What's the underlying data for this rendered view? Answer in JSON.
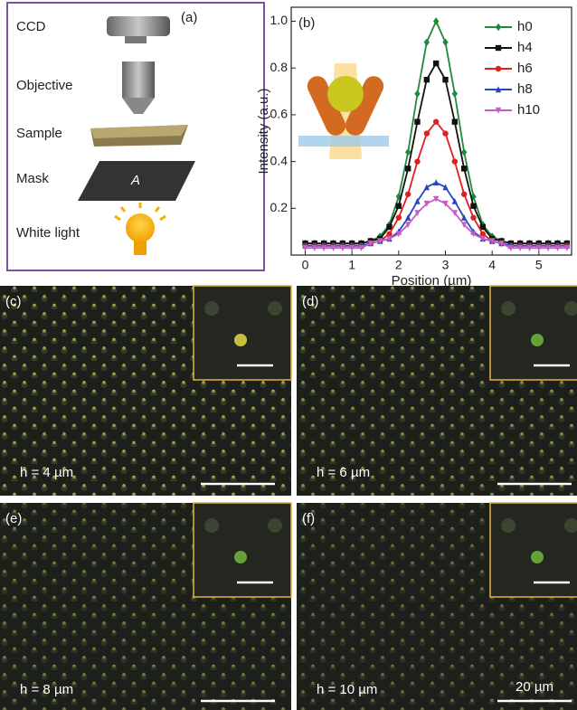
{
  "panel_a": {
    "label": "(a)",
    "components": [
      "CCD",
      "Objective",
      "Sample",
      "Mask",
      "White light"
    ],
    "mask_letter": "A"
  },
  "chart_data": {
    "type": "line",
    "panel_label": "(b)",
    "x_label": "Position (µm)",
    "y_label": "Intensity (a.u.)",
    "x": [
      0,
      0.2,
      0.4,
      0.6,
      0.8,
      1.0,
      1.2,
      1.4,
      1.6,
      1.8,
      2.0,
      2.2,
      2.4,
      2.6,
      2.8,
      3.0,
      3.2,
      3.4,
      3.6,
      3.8,
      4.0,
      4.2,
      4.4,
      4.6,
      4.8,
      5.0,
      5.2,
      5.4,
      5.6
    ],
    "series": [
      {
        "name": "h0",
        "color": "#1f8a3c",
        "marker": "diamond",
        "values": [
          0.05,
          0.05,
          0.05,
          0.05,
          0.05,
          0.05,
          0.05,
          0.06,
          0.08,
          0.13,
          0.25,
          0.44,
          0.69,
          0.91,
          1.0,
          0.91,
          0.69,
          0.44,
          0.25,
          0.13,
          0.08,
          0.06,
          0.05,
          0.05,
          0.05,
          0.05,
          0.05,
          0.05,
          0.05
        ]
      },
      {
        "name": "h4",
        "color": "#111111",
        "marker": "square",
        "values": [
          0.05,
          0.05,
          0.05,
          0.05,
          0.05,
          0.05,
          0.05,
          0.06,
          0.07,
          0.12,
          0.21,
          0.37,
          0.57,
          0.75,
          0.82,
          0.75,
          0.57,
          0.37,
          0.21,
          0.12,
          0.07,
          0.06,
          0.05,
          0.05,
          0.05,
          0.05,
          0.05,
          0.05,
          0.05
        ]
      },
      {
        "name": "h6",
        "color": "#e02020",
        "marker": "circle",
        "values": [
          0.04,
          0.04,
          0.04,
          0.04,
          0.04,
          0.04,
          0.04,
          0.05,
          0.06,
          0.09,
          0.16,
          0.26,
          0.4,
          0.52,
          0.57,
          0.52,
          0.4,
          0.26,
          0.16,
          0.09,
          0.06,
          0.05,
          0.04,
          0.04,
          0.04,
          0.04,
          0.04,
          0.04,
          0.04
        ]
      },
      {
        "name": "h8",
        "color": "#2a45c0",
        "marker": "triangle-up",
        "values": [
          0.04,
          0.04,
          0.04,
          0.04,
          0.04,
          0.04,
          0.04,
          0.05,
          0.06,
          0.07,
          0.1,
          0.16,
          0.23,
          0.29,
          0.31,
          0.29,
          0.23,
          0.16,
          0.1,
          0.07,
          0.06,
          0.05,
          0.04,
          0.04,
          0.04,
          0.04,
          0.04,
          0.04,
          0.04
        ]
      },
      {
        "name": "h10",
        "color": "#c45ec4",
        "marker": "triangle-down",
        "values": [
          0.03,
          0.03,
          0.03,
          0.03,
          0.03,
          0.03,
          0.03,
          0.05,
          0.06,
          0.07,
          0.09,
          0.13,
          0.18,
          0.22,
          0.24,
          0.22,
          0.18,
          0.13,
          0.09,
          0.07,
          0.06,
          0.05,
          0.03,
          0.03,
          0.03,
          0.03,
          0.03,
          0.03,
          0.03
        ]
      }
    ],
    "xlim": [
      -0.3,
      5.7
    ],
    "xticks": [
      0,
      1,
      2,
      3,
      4,
      5
    ],
    "ylim": [
      0.0,
      1.06
    ],
    "yticks": [
      0.2,
      0.4,
      0.6,
      0.8,
      {
        "value": 1,
        "label": "1.0"
      }
    ]
  },
  "micrographs": [
    {
      "label": "(c)",
      "caption": "h = 4 µm"
    },
    {
      "label": "(d)",
      "caption": "h = 6 µm"
    },
    {
      "label": "(e)",
      "caption": "h = 8 µm"
    },
    {
      "label": "(f)",
      "caption": "h = 10 µm",
      "scale_bar": "20 µm"
    }
  ]
}
